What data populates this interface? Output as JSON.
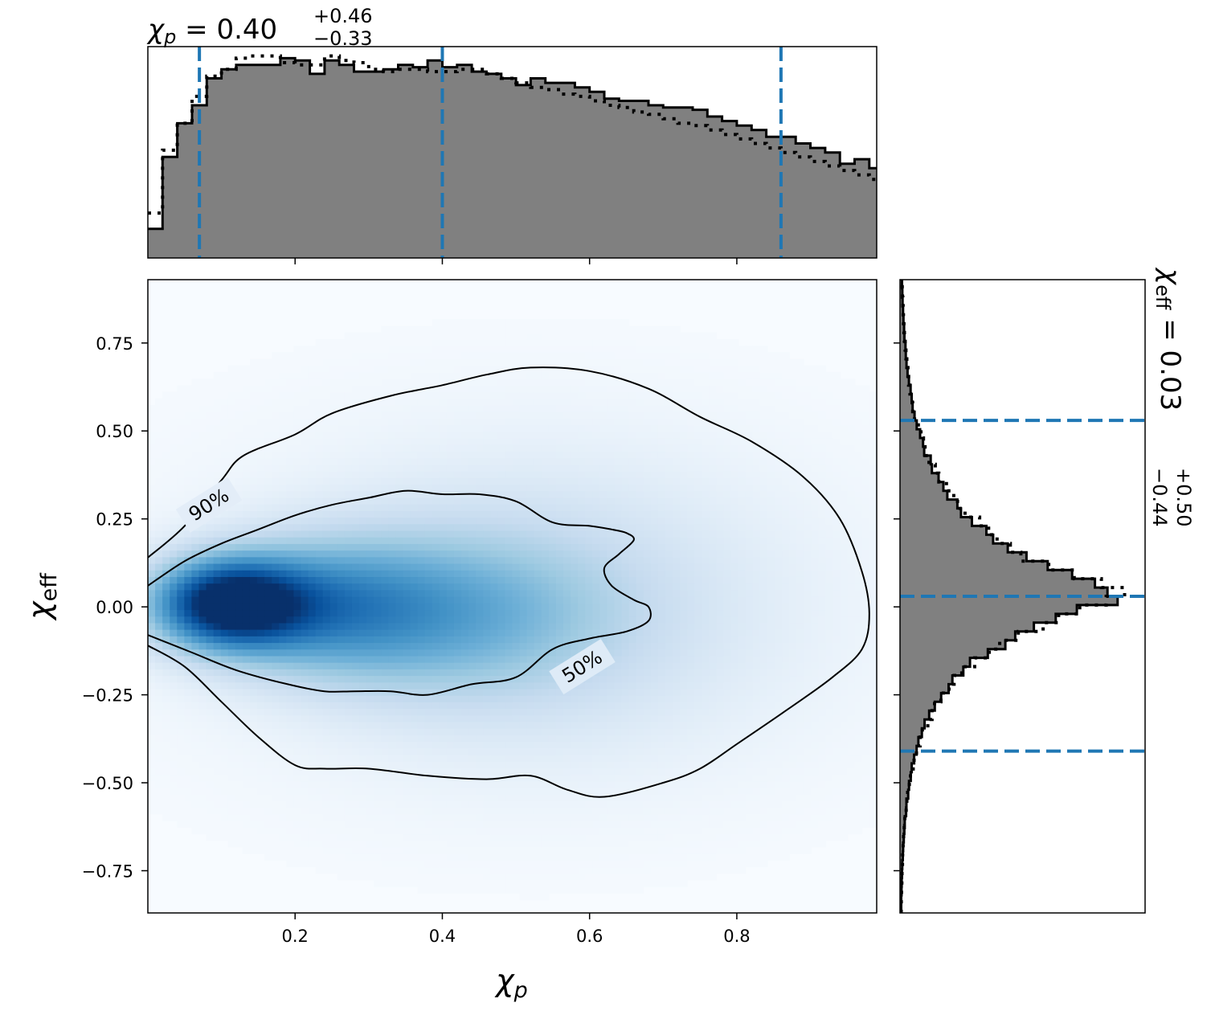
{
  "chart_data": {
    "type": "corner-plot",
    "colors": {
      "density": [
        "#f7fbff",
        "#deebf7",
        "#c6dbef",
        "#9ecae1",
        "#6baed6",
        "#4292c6",
        "#2171b5",
        "#08519c",
        "#08306b"
      ],
      "hist_fill": "#808080",
      "hist_edge": "#000000",
      "quantile_line": "#1f77b4"
    },
    "titles": {
      "chi_p": {
        "symbol": "χ",
        "sub": "p",
        "eq": " = 0.40",
        "plus": "+0.46",
        "minus": "−0.33"
      },
      "chi_eff": {
        "symbol": "χ",
        "sub": "eff",
        "eq": " = 0.03",
        "plus": "+0.50",
        "minus": "−0.44"
      }
    },
    "main": {
      "xlabel": {
        "symbol": "χ",
        "sub": "p"
      },
      "ylabel": {
        "symbol": "χ",
        "sub": "eff"
      },
      "xlim": [
        0.0,
        0.99
      ],
      "ylim": [
        -0.87,
        0.93
      ],
      "xticks": [
        0.2,
        0.4,
        0.6,
        0.8
      ],
      "xtick_labels": [
        "0.2",
        "0.4",
        "0.6",
        "0.8"
      ],
      "yticks": [
        0.75,
        0.5,
        0.25,
        0.0,
        -0.25,
        -0.5,
        -0.75
      ],
      "ytick_labels": [
        "0.75",
        "0.50",
        "0.25",
        "0.00",
        "−0.25",
        "−0.50",
        "−0.75"
      ],
      "density_peak": [
        0.11,
        0.01
      ],
      "contours": [
        {
          "label": "50%",
          "label_at": [
            0.59,
            -0.17
          ],
          "points": [
            [
              0.0,
              0.06
            ],
            [
              0.05,
              0.13
            ],
            [
              0.1,
              0.18
            ],
            [
              0.15,
              0.22
            ],
            [
              0.2,
              0.26
            ],
            [
              0.25,
              0.29
            ],
            [
              0.3,
              0.31
            ],
            [
              0.35,
              0.33
            ],
            [
              0.4,
              0.32
            ],
            [
              0.45,
              0.32
            ],
            [
              0.5,
              0.3
            ],
            [
              0.55,
              0.24
            ],
            [
              0.6,
              0.23
            ],
            [
              0.63,
              0.22
            ],
            [
              0.65,
              0.21
            ],
            [
              0.66,
              0.19
            ],
            [
              0.64,
              0.15
            ],
            [
              0.62,
              0.11
            ],
            [
              0.63,
              0.06
            ],
            [
              0.66,
              0.02
            ],
            [
              0.68,
              0.0
            ],
            [
              0.68,
              -0.04
            ],
            [
              0.65,
              -0.07
            ],
            [
              0.6,
              -0.09
            ],
            [
              0.55,
              -0.12
            ],
            [
              0.5,
              -0.2
            ],
            [
              0.44,
              -0.22
            ],
            [
              0.38,
              -0.25
            ],
            [
              0.33,
              -0.24
            ],
            [
              0.28,
              -0.24
            ],
            [
              0.24,
              -0.24
            ],
            [
              0.19,
              -0.22
            ],
            [
              0.12,
              -0.18
            ],
            [
              0.06,
              -0.13
            ],
            [
              0.0,
              -0.08
            ]
          ]
        },
        {
          "label": "90%",
          "label_at": [
            0.083,
            0.29
          ],
          "points": [
            [
              0.0,
              0.14
            ],
            [
              0.05,
              0.23
            ],
            [
              0.1,
              0.36
            ],
            [
              0.13,
              0.43
            ],
            [
              0.2,
              0.49
            ],
            [
              0.25,
              0.55
            ],
            [
              0.33,
              0.6
            ],
            [
              0.4,
              0.63
            ],
            [
              0.46,
              0.66
            ],
            [
              0.52,
              0.68
            ],
            [
              0.6,
              0.67
            ],
            [
              0.68,
              0.62
            ],
            [
              0.75,
              0.54
            ],
            [
              0.82,
              0.47
            ],
            [
              0.89,
              0.37
            ],
            [
              0.94,
              0.25
            ],
            [
              0.97,
              0.1
            ],
            [
              0.98,
              -0.02
            ],
            [
              0.97,
              -0.12
            ],
            [
              0.93,
              -0.2
            ],
            [
              0.87,
              -0.29
            ],
            [
              0.8,
              -0.39
            ],
            [
              0.75,
              -0.46
            ],
            [
              0.7,
              -0.5
            ],
            [
              0.62,
              -0.54
            ],
            [
              0.57,
              -0.52
            ],
            [
              0.52,
              -0.48
            ],
            [
              0.46,
              -0.49
            ],
            [
              0.38,
              -0.48
            ],
            [
              0.3,
              -0.46
            ],
            [
              0.24,
              -0.46
            ],
            [
              0.2,
              -0.45
            ],
            [
              0.15,
              -0.37
            ],
            [
              0.1,
              -0.27
            ],
            [
              0.05,
              -0.17
            ],
            [
              0.0,
              -0.11
            ]
          ]
        }
      ]
    },
    "top_hist": {
      "variable": "chi_p",
      "xlim": [
        0.0,
        0.99
      ],
      "bin_edges_start": 0.0,
      "bin_width": 0.02,
      "values": [
        0.13,
        0.45,
        0.6,
        0.68,
        0.8,
        0.84,
        0.86,
        0.86,
        0.86,
        0.89,
        0.88,
        0.82,
        0.88,
        0.86,
        0.83,
        0.83,
        0.84,
        0.86,
        0.85,
        0.88,
        0.85,
        0.86,
        0.83,
        0.82,
        0.8,
        0.77,
        0.8,
        0.78,
        0.78,
        0.76,
        0.74,
        0.71,
        0.7,
        0.7,
        0.68,
        0.67,
        0.67,
        0.66,
        0.63,
        0.61,
        0.59,
        0.57,
        0.54,
        0.54,
        0.51,
        0.49,
        0.47,
        0.42,
        0.44,
        0.4
      ],
      "prior_values": [
        0.2,
        0.48,
        0.6,
        0.72,
        0.81,
        0.84,
        0.89,
        0.9,
        0.9,
        0.87,
        0.86,
        0.86,
        0.9,
        0.88,
        0.87,
        0.84,
        0.83,
        0.84,
        0.84,
        0.83,
        0.83,
        0.84,
        0.84,
        0.82,
        0.8,
        0.78,
        0.76,
        0.75,
        0.73,
        0.72,
        0.7,
        0.68,
        0.67,
        0.65,
        0.64,
        0.62,
        0.6,
        0.59,
        0.57,
        0.55,
        0.53,
        0.51,
        0.49,
        0.47,
        0.45,
        0.43,
        0.41,
        0.39,
        0.37,
        0.35
      ],
      "quantiles": [
        0.07,
        0.4,
        0.86
      ]
    },
    "right_hist": {
      "variable": "chi_eff",
      "ylim": [
        -0.87,
        0.93
      ],
      "quantiles": [
        -0.41,
        0.03,
        0.53
      ]
    }
  }
}
